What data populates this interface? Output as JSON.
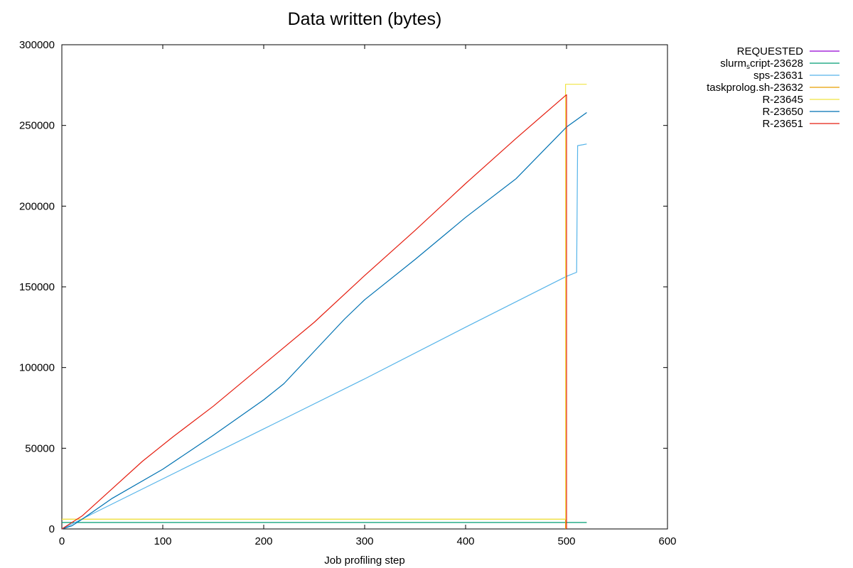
{
  "chart_data": {
    "type": "line",
    "title": "Data written (bytes)",
    "xlabel": "Job profiling step",
    "ylabel": "",
    "xlim": [
      0,
      600
    ],
    "ylim": [
      0,
      300000
    ],
    "xticks": [
      0,
      100,
      200,
      300,
      400,
      500,
      600
    ],
    "yticks": [
      0,
      50000,
      100000,
      150000,
      200000,
      250000,
      300000
    ],
    "grid": false,
    "legend_position": "outside-top-right",
    "series": [
      {
        "name": "REQUESTED",
        "color": "#9400d3",
        "points": []
      },
      {
        "name": "slurm_script-23628",
        "name_main": "slurm",
        "name_sub": "s",
        "name_rest": "cript-23628",
        "color": "#009e73",
        "points": [
          [
            0,
            4000
          ],
          [
            520,
            4000
          ]
        ]
      },
      {
        "name": "sps-23631",
        "color": "#56b4e9",
        "points": [
          [
            0,
            0
          ],
          [
            100,
            31000
          ],
          [
            200,
            62000
          ],
          [
            300,
            93000
          ],
          [
            400,
            125000
          ],
          [
            500,
            156500
          ],
          [
            510,
            159000
          ],
          [
            511,
            237500
          ],
          [
            516,
            238000
          ],
          [
            520,
            238500
          ]
        ]
      },
      {
        "name": "taskprolog.sh-23632",
        "color": "#e69f00",
        "points": [
          [
            0,
            6000
          ],
          [
            499,
            6000
          ],
          [
            499,
            0
          ]
        ]
      },
      {
        "name": "R-23645",
        "color": "#f0e442",
        "points": [
          [
            0,
            6000
          ],
          [
            499,
            6000
          ],
          [
            499,
            275500
          ],
          [
            520,
            275500
          ]
        ]
      },
      {
        "name": "R-23650",
        "color": "#0072b2",
        "points": [
          [
            0,
            0
          ],
          [
            10,
            2000
          ],
          [
            20,
            6000
          ],
          [
            50,
            19000
          ],
          [
            100,
            37000
          ],
          [
            150,
            58000
          ],
          [
            200,
            80000
          ],
          [
            220,
            90000
          ],
          [
            250,
            110000
          ],
          [
            280,
            130000
          ],
          [
            300,
            142000
          ],
          [
            350,
            167000
          ],
          [
            400,
            193000
          ],
          [
            450,
            217000
          ],
          [
            500,
            249000
          ],
          [
            520,
            258000
          ]
        ]
      },
      {
        "name": "R-23651",
        "color": "#e51e10",
        "points": [
          [
            0,
            0
          ],
          [
            20,
            8000
          ],
          [
            50,
            25000
          ],
          [
            80,
            42000
          ],
          [
            110,
            57000
          ],
          [
            150,
            76000
          ],
          [
            200,
            102000
          ],
          [
            250,
            128000
          ],
          [
            300,
            157000
          ],
          [
            350,
            185000
          ],
          [
            400,
            214000
          ],
          [
            450,
            242000
          ],
          [
            499,
            268500
          ],
          [
            500,
            269000
          ],
          [
            500,
            0
          ]
        ]
      }
    ]
  }
}
